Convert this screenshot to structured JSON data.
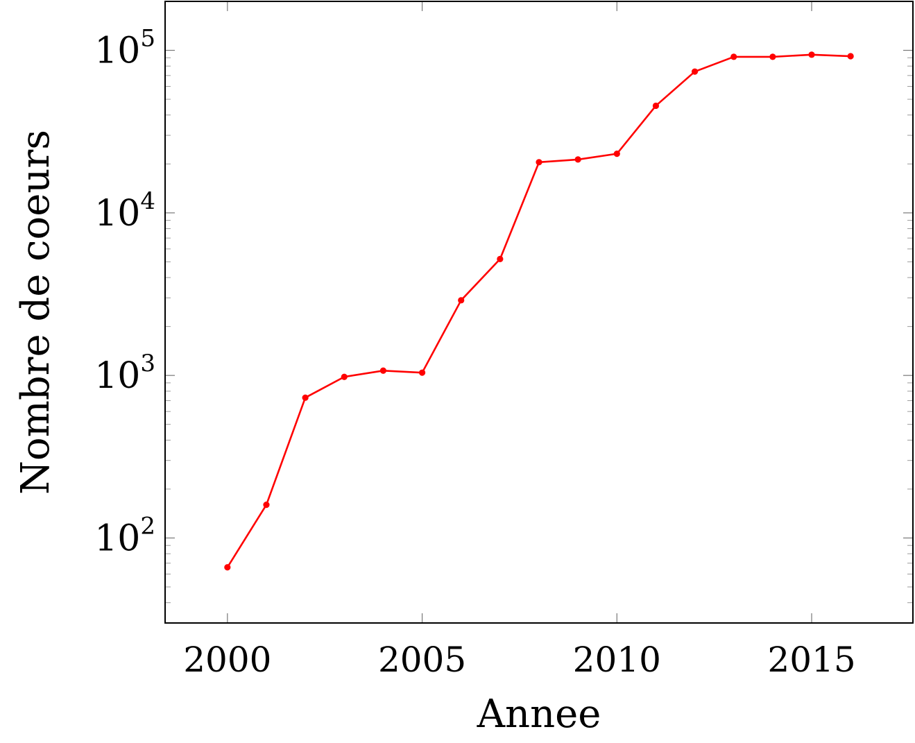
{
  "chart_data": {
    "type": "line",
    "title": "",
    "xlabel": "Annee",
    "ylabel": "Nombre de coeurs",
    "x_ticks": [
      2000,
      2005,
      2010,
      2015
    ],
    "x_tick_labels": [
      "2000",
      "2005",
      "2010",
      "2015"
    ],
    "xlim": [
      1998.4,
      2017.6
    ],
    "y_scale": "log",
    "ylim": [
      30,
      200000
    ],
    "y_ticks": [
      100,
      1000,
      10000,
      100000
    ],
    "y_tick_labels": [
      {
        "base": "10",
        "exp": "2"
      },
      {
        "base": "10",
        "exp": "3"
      },
      {
        "base": "10",
        "exp": "4"
      },
      {
        "base": "10",
        "exp": "5"
      }
    ],
    "grid": false,
    "legend": "none",
    "series": [
      {
        "color": "#ff0000",
        "marker": "circle",
        "x": [
          2000,
          2001,
          2002,
          2003,
          2004,
          2005,
          2006,
          2007,
          2008,
          2009,
          2010,
          2011,
          2012,
          2013,
          2014,
          2015,
          2016
        ],
        "y": [
          66,
          160,
          730,
          980,
          1070,
          1040,
          2900,
          5200,
          20500,
          21300,
          23100,
          45600,
          74000,
          91200,
          91200,
          94000,
          92000
        ]
      }
    ]
  }
}
